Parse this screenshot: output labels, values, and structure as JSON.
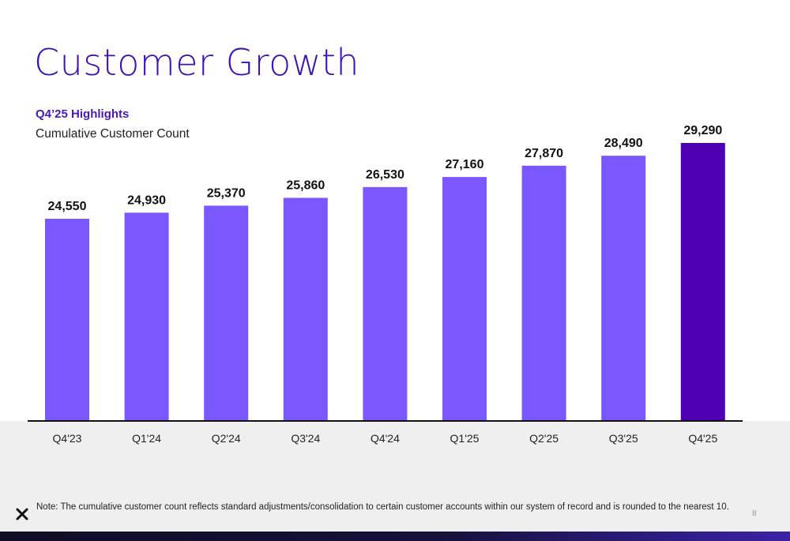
{
  "slide": {
    "title": "Customer Growth",
    "highlight": "Q4’25 Highlights",
    "subtitle": "Cumulative Customer Count",
    "note": "Note: The cumulative customer count reflects standard adjustments/consolidation to certain customer accounts within our system of record and is rounded to the nearest 10.",
    "page_number": "8",
    "logo_icon": "x-logo-icon"
  },
  "colors": {
    "bar": "#7b57ff",
    "bar_highlight": "#4f00b3",
    "title": "#3d12b8",
    "axis": "#111111"
  },
  "chart_data": {
    "type": "bar",
    "title": "",
    "xlabel": "",
    "ylabel": "",
    "categories": [
      "Q4'23",
      "Q1'24",
      "Q2'24",
      "Q3'24",
      "Q4'24",
      "Q1'25",
      "Q2'25",
      "Q3'25",
      "Q4'25"
    ],
    "values": [
      24550,
      24930,
      25370,
      25860,
      26530,
      27160,
      27870,
      28490,
      29290
    ],
    "value_labels": [
      "24,550",
      "24,930",
      "25,370",
      "25,860",
      "26,530",
      "27,160",
      "27,870",
      "28,490",
      "29,290"
    ],
    "highlighted_category": "Q4'25",
    "grid": false,
    "legend": "none"
  }
}
